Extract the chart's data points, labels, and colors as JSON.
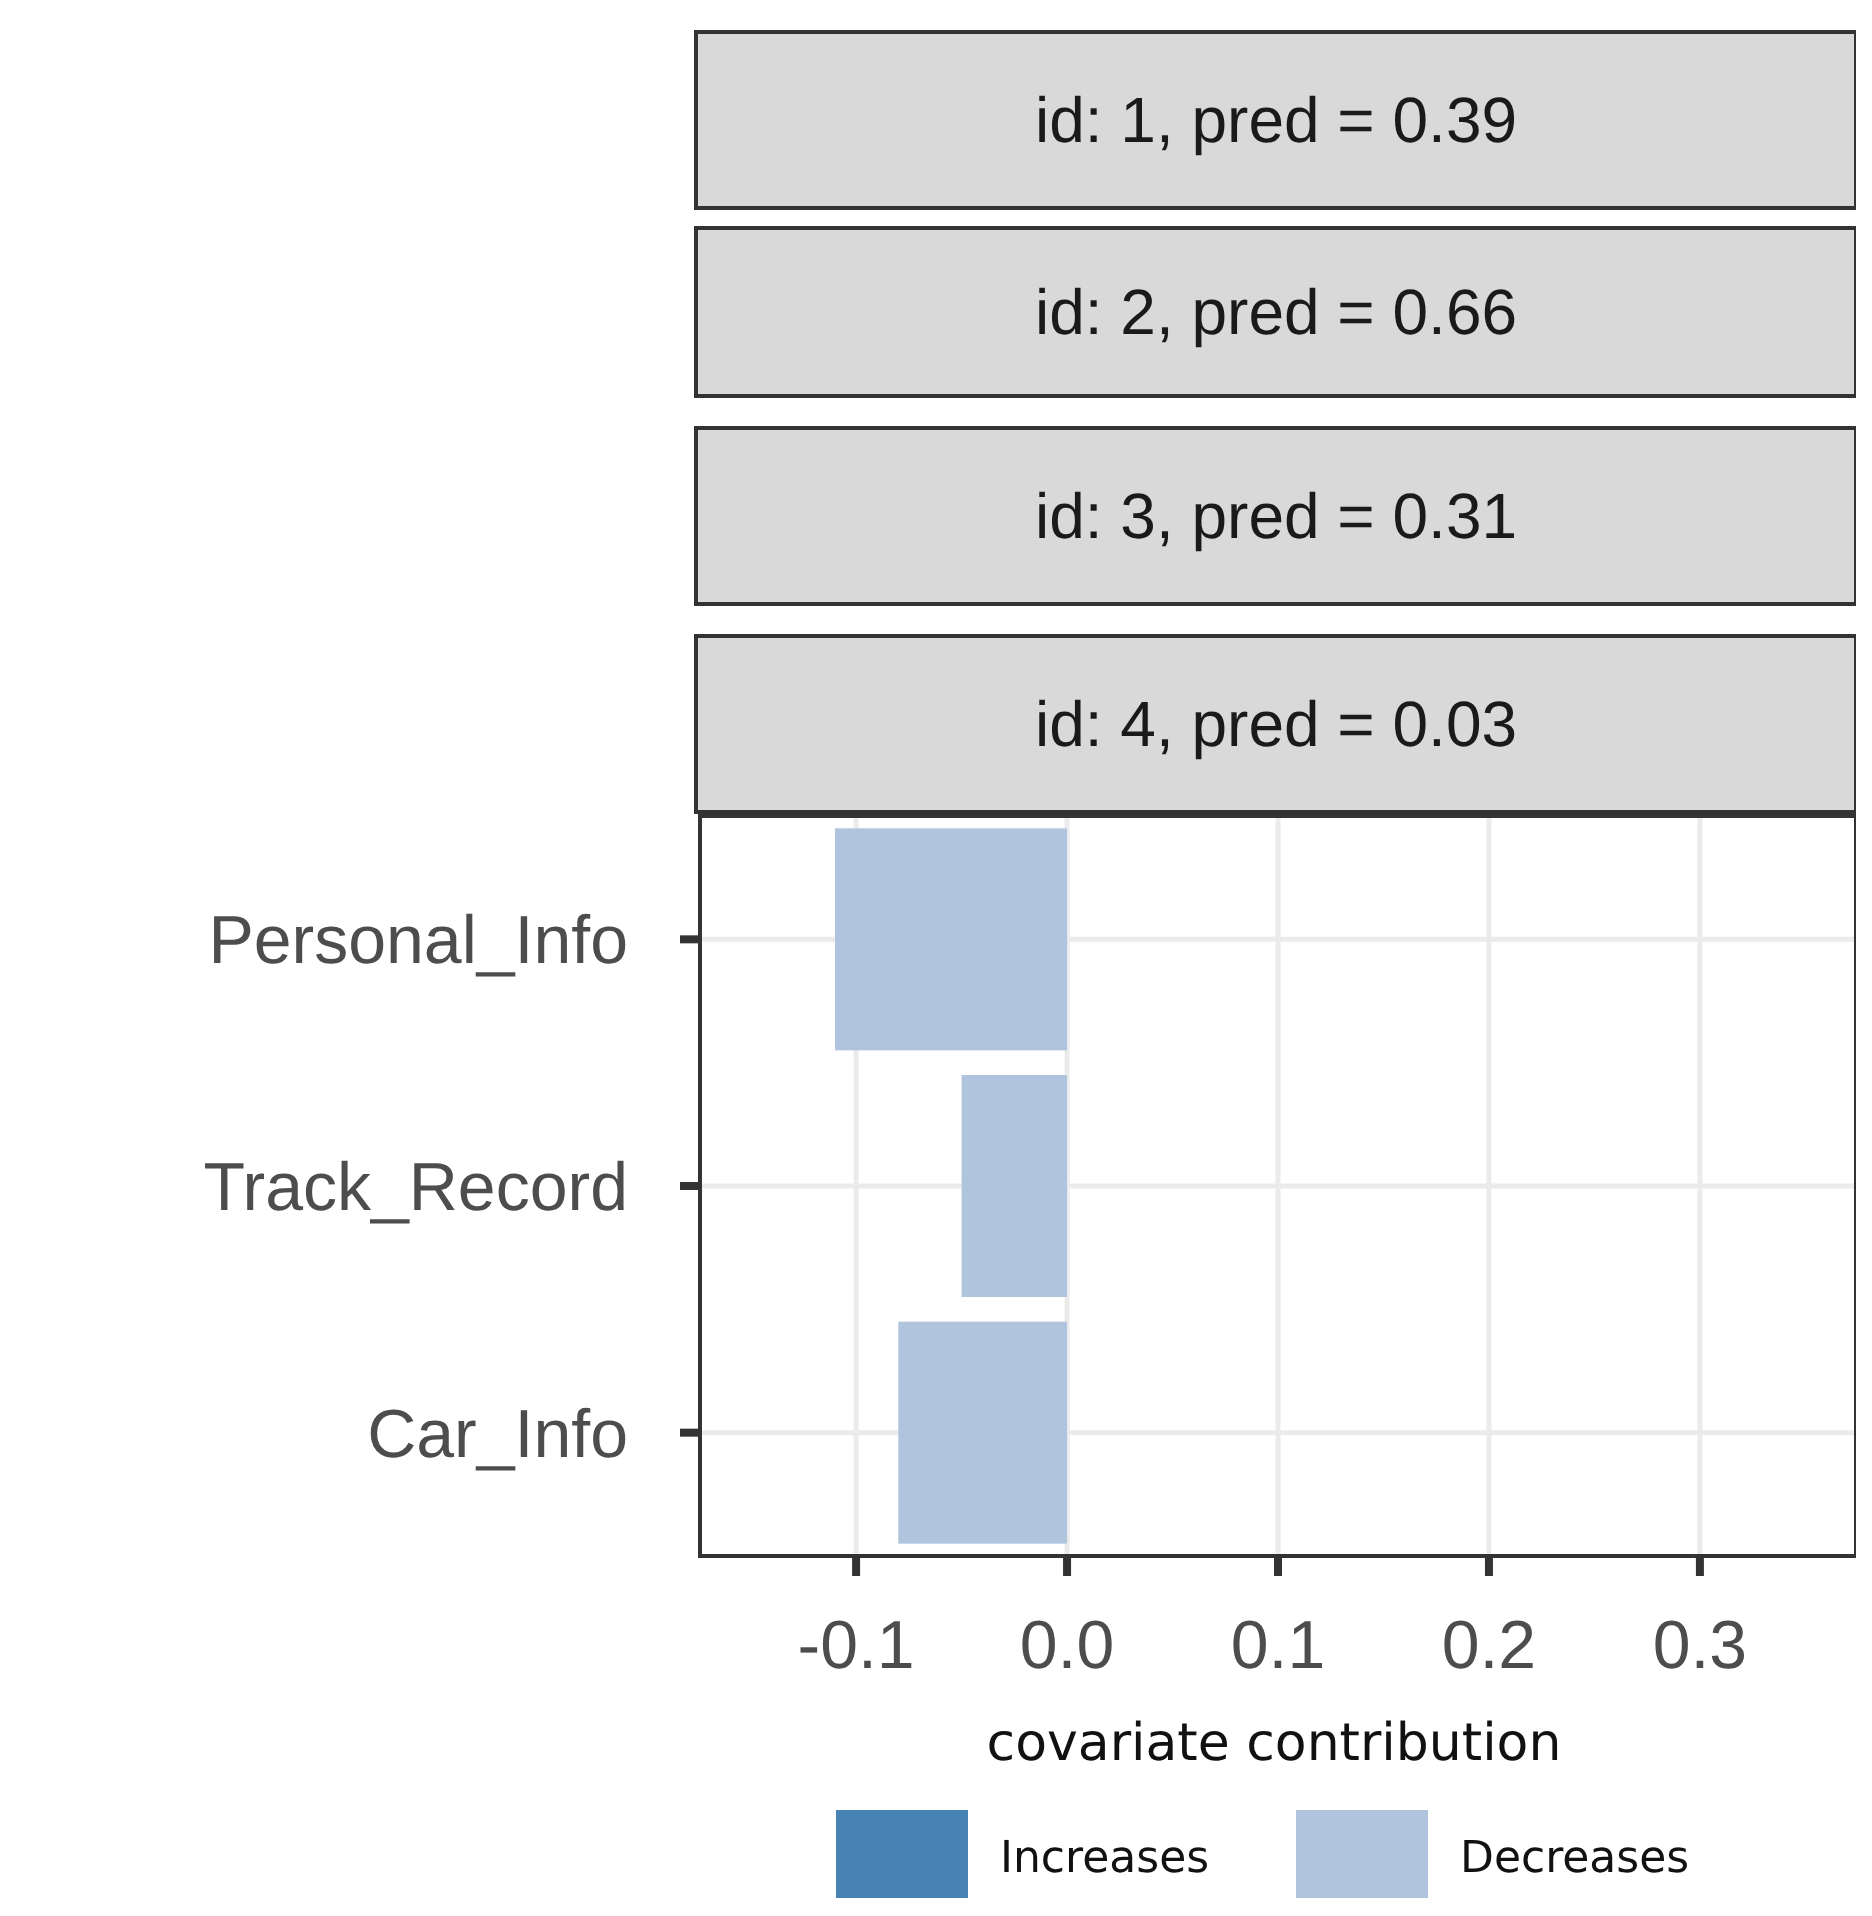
{
  "chart_data": {
    "type": "bar",
    "orientation": "horizontal",
    "title": "id: 4, pred = 0.03",
    "annotations": [
      "id: 1, pred = 0.39",
      "id: 2, pred = 0.66",
      "id: 3, pred = 0.31"
    ],
    "categories": [
      "Personal_Info",
      "Track_Record",
      "Car_Info"
    ],
    "series": [
      {
        "name": "Increases",
        "color": "#4682b4",
        "values": [
          null,
          null,
          null
        ]
      },
      {
        "name": "Decreases",
        "color": "#b0c4de",
        "values": [
          -0.11,
          -0.05,
          -0.08
        ]
      }
    ],
    "xlabel": "covariate contribution",
    "xlim": [
      -0.174,
      0.374
    ],
    "xticks": [
      {
        "value": -0.1,
        "label": "-0.1"
      },
      {
        "value": 0,
        "label": "0.0"
      },
      {
        "value": 0.1,
        "label": "0.1"
      },
      {
        "value": 0.2,
        "label": "0.2"
      },
      {
        "value": 0.3,
        "label": "0.3"
      }
    ],
    "grid": true,
    "legend": "bottom"
  }
}
